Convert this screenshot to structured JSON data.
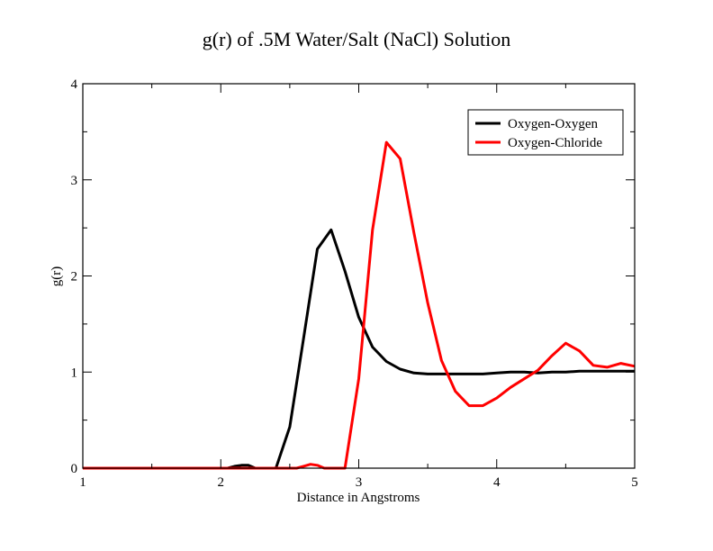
{
  "chart_data": {
    "type": "line",
    "title": "g(r) of .5M Water/Salt (NaCl) Solution",
    "xlabel": "Distance in Angstroms",
    "ylabel": "g(r)",
    "xlim": [
      1,
      5
    ],
    "ylim": [
      0,
      4
    ],
    "xticks": [
      "1",
      "2",
      "3",
      "4",
      "5"
    ],
    "yticks": [
      "0",
      "1",
      "2",
      "3",
      "4"
    ],
    "grid": false,
    "legend_position": "top-right",
    "series": [
      {
        "name": "Oxygen-Oxygen",
        "color": "#000000",
        "x": [
          1.0,
          2.0,
          2.05,
          2.1,
          2.15,
          2.2,
          2.25,
          2.3,
          2.4,
          2.5,
          2.6,
          2.7,
          2.8,
          2.9,
          3.0,
          3.1,
          3.2,
          3.3,
          3.4,
          3.5,
          3.6,
          3.7,
          3.8,
          3.9,
          4.0,
          4.1,
          4.2,
          4.3,
          4.4,
          4.5,
          4.6,
          4.7,
          4.8,
          4.9,
          5.0
        ],
        "y": [
          0.0,
          0.0,
          0.0,
          0.02,
          0.03,
          0.03,
          0.0,
          0.0,
          0.0,
          0.43,
          1.35,
          2.28,
          2.48,
          2.05,
          1.57,
          1.26,
          1.11,
          1.03,
          0.99,
          0.98,
          0.98,
          0.98,
          0.98,
          0.98,
          0.99,
          1.0,
          1.0,
          0.99,
          1.0,
          1.0,
          1.01,
          1.01,
          1.01,
          1.01,
          1.01
        ]
      },
      {
        "name": "Oxygen-Chloride",
        "color": "#ff0000",
        "x": [
          1.0,
          2.0,
          2.1,
          2.2,
          2.3,
          2.4,
          2.55,
          2.6,
          2.65,
          2.7,
          2.75,
          2.8,
          2.9,
          3.0,
          3.1,
          3.2,
          3.3,
          3.4,
          3.5,
          3.6,
          3.7,
          3.8,
          3.9,
          4.0,
          4.1,
          4.2,
          4.3,
          4.4,
          4.5,
          4.6,
          4.7,
          4.8,
          4.9,
          5.0
        ],
        "y": [
          0.0,
          0.0,
          0.0,
          0.0,
          0.0,
          0.0,
          0.0,
          0.02,
          0.04,
          0.03,
          0.0,
          0.0,
          0.0,
          0.93,
          2.48,
          3.39,
          3.22,
          2.45,
          1.72,
          1.12,
          0.8,
          0.65,
          0.65,
          0.73,
          0.84,
          0.93,
          1.02,
          1.17,
          1.3,
          1.22,
          1.07,
          1.05,
          1.09,
          1.06
        ]
      }
    ]
  }
}
